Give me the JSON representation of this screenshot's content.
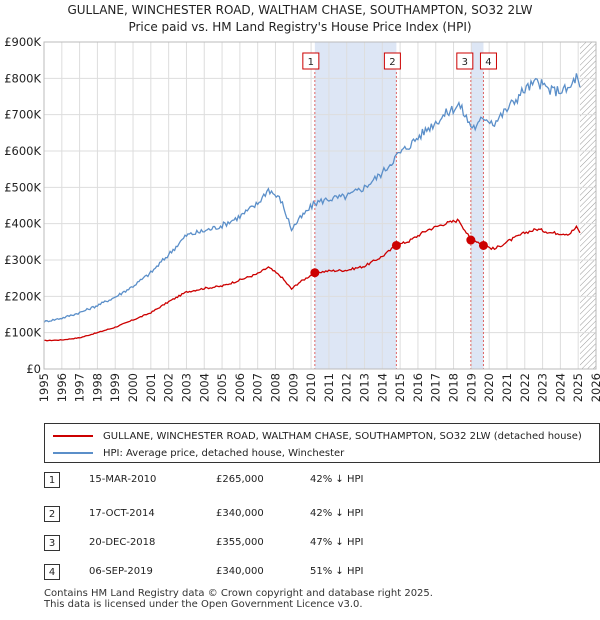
{
  "chart_data": {
    "type": "line",
    "title": "GULLANE, WINCHESTER ROAD, WALTHAM CHASE, SOUTHAMPTON, SO32 2LW",
    "subtitle": "Price paid vs. HM Land Registry's House Price Index (HPI)",
    "xlabel": "",
    "ylabel": "",
    "xlim": [
      1995,
      2026
    ],
    "ylim": [
      0,
      900000
    ],
    "x_ticks": [
      "1995",
      "1996",
      "1997",
      "1998",
      "1999",
      "2000",
      "2001",
      "2002",
      "2003",
      "2004",
      "2005",
      "2006",
      "2007",
      "2008",
      "2009",
      "2010",
      "2011",
      "2012",
      "2013",
      "2014",
      "2015",
      "2016",
      "2017",
      "2018",
      "2019",
      "2020",
      "2021",
      "2022",
      "2023",
      "2024",
      "2025",
      "2026"
    ],
    "y_ticks": [
      {
        "value": 0,
        "label": "£0"
      },
      {
        "value": 100000,
        "label": "£100K"
      },
      {
        "value": 200000,
        "label": "£200K"
      },
      {
        "value": 300000,
        "label": "£300K"
      },
      {
        "value": 400000,
        "label": "£400K"
      },
      {
        "value": 500000,
        "label": "£500K"
      },
      {
        "value": 600000,
        "label": "£600K"
      },
      {
        "value": 700000,
        "label": "£700K"
      },
      {
        "value": 800000,
        "label": "£800K"
      },
      {
        "value": 900000,
        "label": "£900K"
      }
    ],
    "grid": true,
    "legend_position": "below",
    "series": [
      {
        "name": "GULLANE, WINCHESTER ROAD, WALTHAM CHASE, SOUTHAMPTON, SO32 2LW (detached house)",
        "color": "#cc0000",
        "points": [
          [
            1995.0,
            78000
          ],
          [
            1996.0,
            80000
          ],
          [
            1997.0,
            86000
          ],
          [
            1998.0,
            100000
          ],
          [
            1999.0,
            115000
          ],
          [
            2000.0,
            135000
          ],
          [
            2001.0,
            155000
          ],
          [
            2002.0,
            185000
          ],
          [
            2003.0,
            212000
          ],
          [
            2004.0,
            222000
          ],
          [
            2005.0,
            228000
          ],
          [
            2006.0,
            245000
          ],
          [
            2007.0,
            262000
          ],
          [
            2007.6,
            280000
          ],
          [
            2008.3,
            255000
          ],
          [
            2008.9,
            220000
          ],
          [
            2009.3,
            237000
          ],
          [
            2010.21,
            265000
          ],
          [
            2011.0,
            270000
          ],
          [
            2012.0,
            272000
          ],
          [
            2013.0,
            283000
          ],
          [
            2014.0,
            310000
          ],
          [
            2014.79,
            340000
          ],
          [
            2015.5,
            352000
          ],
          [
            2016.5,
            382000
          ],
          [
            2017.5,
            400000
          ],
          [
            2018.3,
            410000
          ],
          [
            2018.97,
            355000
          ],
          [
            2019.3,
            352000
          ],
          [
            2019.68,
            340000
          ],
          [
            2020.3,
            330000
          ],
          [
            2021.0,
            350000
          ],
          [
            2022.0,
            375000
          ],
          [
            2022.7,
            385000
          ],
          [
            2023.5,
            375000
          ],
          [
            2024.5,
            372000
          ],
          [
            2024.9,
            390000
          ],
          [
            2025.1,
            375000
          ]
        ]
      },
      {
        "name": "HPI: Average price, detached house, Winchester",
        "color": "#5b8fc9",
        "points": [
          [
            1995.0,
            130000
          ],
          [
            1996.0,
            140000
          ],
          [
            1997.0,
            155000
          ],
          [
            1998.0,
            175000
          ],
          [
            1999.0,
            198000
          ],
          [
            2000.0,
            228000
          ],
          [
            2001.0,
            265000
          ],
          [
            2002.0,
            315000
          ],
          [
            2003.0,
            368000
          ],
          [
            2004.0,
            380000
          ],
          [
            2005.0,
            395000
          ],
          [
            2006.0,
            420000
          ],
          [
            2007.0,
            455000
          ],
          [
            2007.6,
            495000
          ],
          [
            2008.3,
            465000
          ],
          [
            2008.9,
            385000
          ],
          [
            2009.3,
            410000
          ],
          [
            2010.21,
            457000
          ],
          [
            2011.0,
            468000
          ],
          [
            2012.0,
            475000
          ],
          [
            2013.0,
            500000
          ],
          [
            2014.0,
            540000
          ],
          [
            2014.79,
            586000
          ],
          [
            2015.5,
            615000
          ],
          [
            2016.5,
            660000
          ],
          [
            2017.5,
            700000
          ],
          [
            2018.3,
            728000
          ],
          [
            2018.97,
            670000
          ],
          [
            2019.3,
            665000
          ],
          [
            2019.68,
            695000
          ],
          [
            2020.3,
            678000
          ],
          [
            2021.0,
            715000
          ],
          [
            2022.0,
            770000
          ],
          [
            2022.7,
            790000
          ],
          [
            2023.5,
            765000
          ],
          [
            2024.5,
            770000
          ],
          [
            2024.9,
            805000
          ],
          [
            2025.1,
            775000
          ]
        ]
      }
    ],
    "sales": [
      {
        "num": "1",
        "date": "15-MAR-2010",
        "price": "£265,000",
        "hpi": "42% ↓ HPI",
        "x": 2010.21,
        "value": 265000
      },
      {
        "num": "2",
        "date": "17-OCT-2014",
        "price": "£340,000",
        "hpi": "42% ↓ HPI",
        "x": 2014.79,
        "value": 340000
      },
      {
        "num": "3",
        "date": "20-DEC-2018",
        "price": "£355,000",
        "hpi": "47% ↓ HPI",
        "x": 2018.97,
        "value": 355000
      },
      {
        "num": "4",
        "date": "06-SEP-2019",
        "price": "£340,000",
        "hpi": "51% ↓ HPI",
        "x": 2019.68,
        "value": 340000
      }
    ],
    "shaded_range": [
      2010.21,
      2014.79
    ],
    "shaded_range_2": [
      2018.97,
      2019.68
    ],
    "future_hatch_from": 2025.1
  },
  "legend": {
    "property_label": "GULLANE, WINCHESTER ROAD, WALTHAM CHASE, SOUTHAMPTON, SO32 2LW (detached house)",
    "hpi_label": "HPI: Average price, detached house, Winchester"
  },
  "footer": {
    "line1": "Contains HM Land Registry data © Crown copyright and database right 2025.",
    "line2": "This data is licensed under the Open Government Licence v3.0."
  },
  "colors": {
    "property": "#cc0000",
    "hpi": "#5b8fc9",
    "shade": "#dde6f5"
  }
}
